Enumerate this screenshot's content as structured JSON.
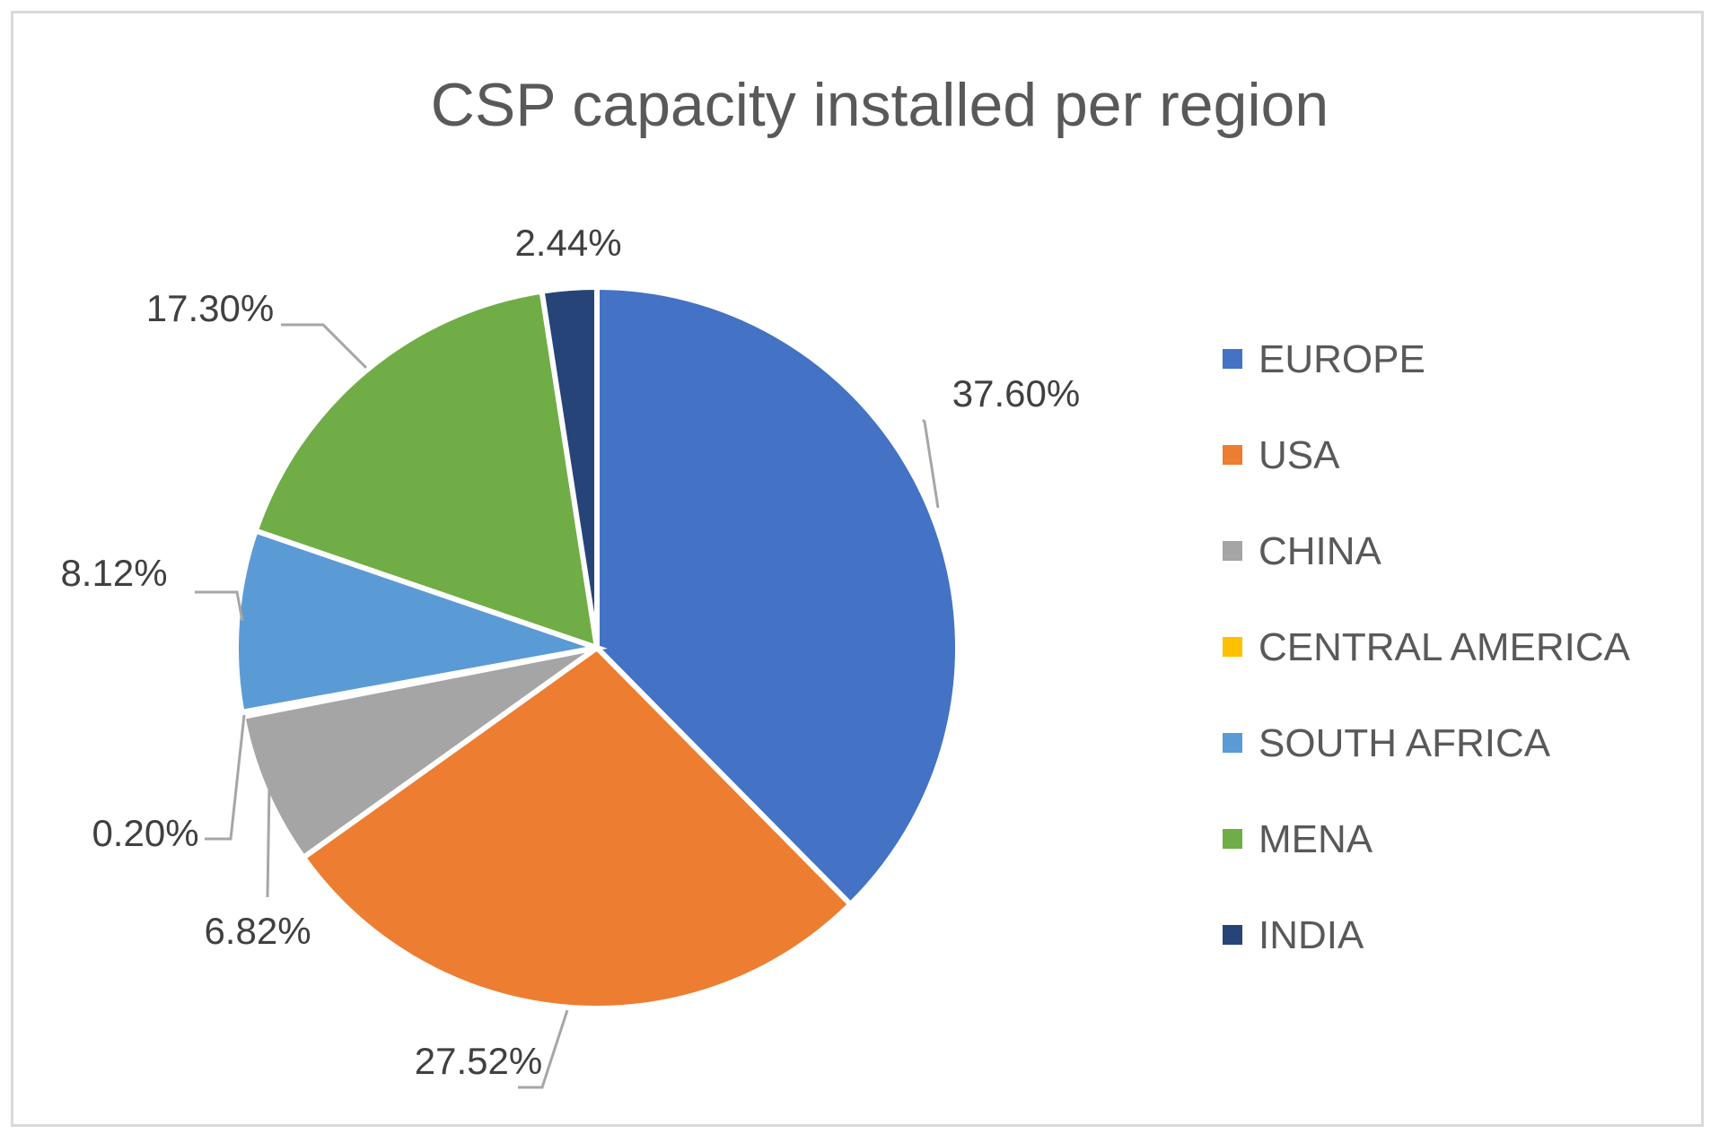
{
  "chart_data": {
    "type": "pie",
    "title": "CSP capacity installed per region",
    "legend_position": "right",
    "start_angle_deg": 0,
    "direction": "clockwise",
    "slices": [
      {
        "name": "EUROPE",
        "value": 37.6,
        "label": "37.60%",
        "color": "#4472c4"
      },
      {
        "name": "USA",
        "value": 27.52,
        "label": "27.52%",
        "color": "#ed7d31"
      },
      {
        "name": "CHINA",
        "value": 6.82,
        "label": "6.82%",
        "color": "#a5a5a5"
      },
      {
        "name": "CENTRAL AMERICA",
        "value": 0.2,
        "label": "0.20%",
        "color": "#ffc000"
      },
      {
        "name": "SOUTH AFRICA",
        "value": 8.12,
        "label": "8.12%",
        "color": "#5b9bd5"
      },
      {
        "name": "MENA",
        "value": 17.3,
        "label": "17.30%",
        "color": "#70ad47"
      },
      {
        "name": "INDIA",
        "value": 2.44,
        "label": "2.44%",
        "color": "#264478"
      }
    ]
  }
}
